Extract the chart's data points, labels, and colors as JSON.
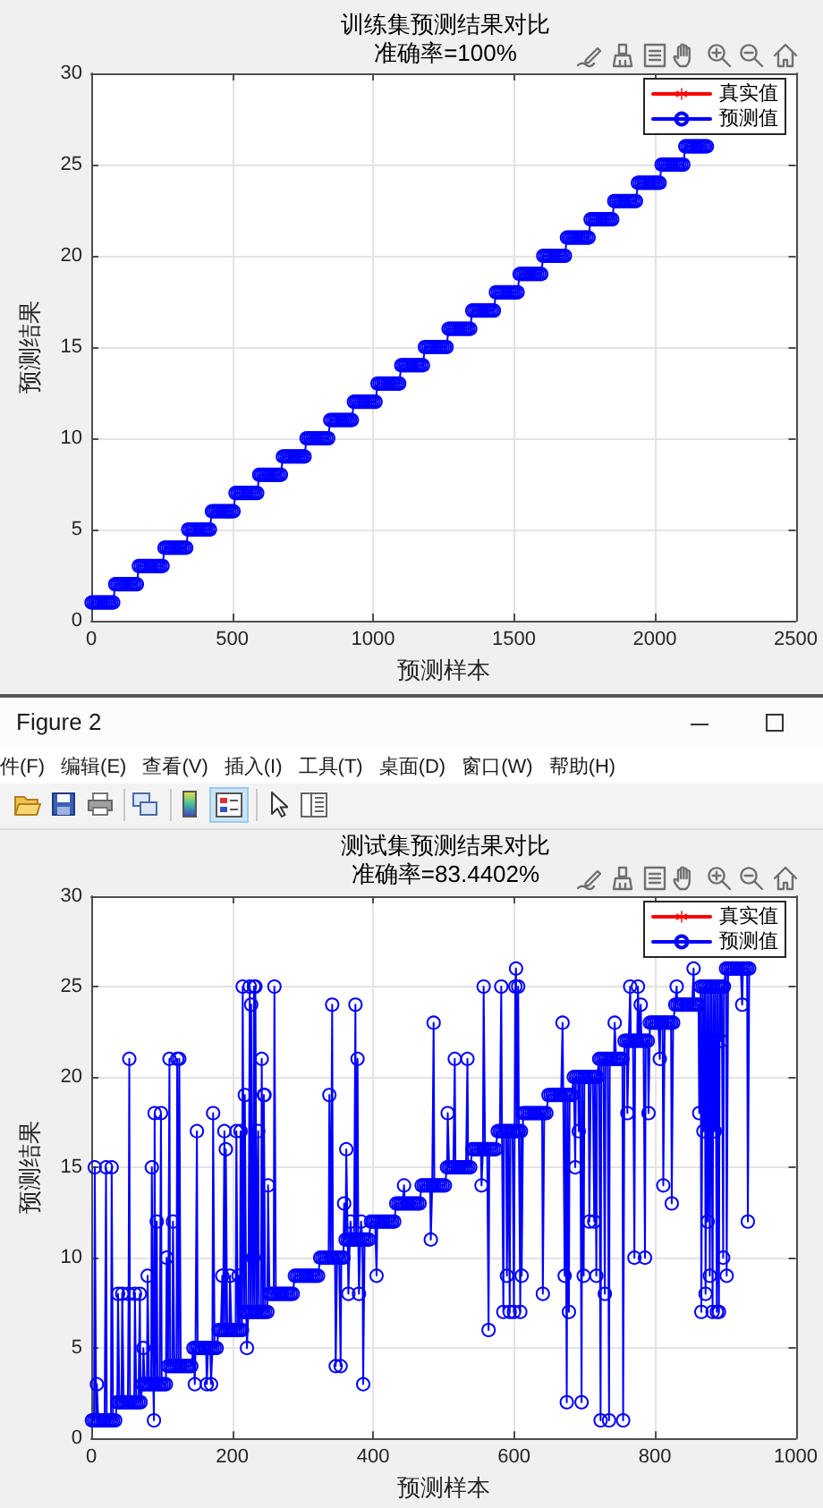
{
  "chart_data": [
    {
      "type": "line",
      "title": "训练集预测结果对比",
      "subtitle": "准确率=100%",
      "xlabel": "预测样本",
      "ylabel": "预测结果",
      "legend": "top right",
      "grid": true,
      "line_style": "solid",
      "xlim": [
        0,
        2500
      ],
      "xticks": [
        0,
        500,
        1000,
        1500,
        2000,
        2500
      ],
      "ylim": [
        0,
        30
      ],
      "yticks": [
        0,
        5,
        10,
        15,
        20,
        25,
        30
      ],
      "x": [
        1,
        8,
        15,
        22,
        29,
        36,
        43,
        50,
        57,
        64,
        71,
        78,
        85,
        92,
        99,
        106,
        113,
        120,
        127,
        134,
        141,
        148,
        155,
        162,
        169,
        176,
        183,
        190,
        197,
        204,
        211,
        218,
        225,
        232,
        239,
        246,
        253,
        260,
        267,
        274,
        281,
        288,
        295,
        302,
        309,
        316,
        323,
        330,
        337,
        344,
        351,
        358,
        365,
        372,
        379,
        386,
        393,
        400,
        407,
        414,
        421,
        428,
        435,
        442,
        449,
        456,
        463,
        470,
        477,
        484,
        491,
        498,
        505,
        512,
        519,
        526,
        533,
        540,
        547,
        554,
        561,
        568,
        575,
        582,
        589,
        596,
        603,
        610,
        617,
        624,
        631,
        638,
        645,
        652,
        659,
        666,
        673,
        680,
        687,
        694,
        701,
        708,
        715,
        722,
        729,
        736,
        743,
        750,
        757,
        764,
        771,
        778,
        785,
        792,
        799,
        806,
        813,
        820,
        827,
        834,
        841,
        848,
        855,
        862,
        869,
        876,
        883,
        890,
        897,
        904,
        911,
        918,
        925,
        932,
        939,
        946,
        953,
        960,
        967,
        974,
        981,
        988,
        995,
        1002,
        1009,
        1016,
        1023,
        1030,
        1037,
        1044,
        1051,
        1058,
        1065,
        1072,
        1079,
        1086,
        1093,
        1100,
        1107,
        1114,
        1121,
        1128,
        1135,
        1142,
        1149,
        1156,
        1163,
        1170,
        1177,
        1184,
        1191,
        1198,
        1205,
        1212,
        1219,
        1226,
        1233,
        1240,
        1247,
        1254,
        1261,
        1268,
        1275,
        1282,
        1289,
        1296,
        1303,
        1310,
        1317,
        1324,
        1331,
        1338,
        1345,
        1352,
        1359,
        1366,
        1373,
        1380,
        1387,
        1394,
        1401,
        1408,
        1415,
        1422,
        1429,
        1436,
        1443,
        1450,
        1457,
        1464,
        1471,
        1478,
        1485,
        1492,
        1499,
        1506,
        1513,
        1520,
        1527,
        1534,
        1541,
        1548,
        1555,
        1562,
        1569,
        1576,
        1583,
        1590,
        1597,
        1604,
        1611,
        1618,
        1625,
        1632,
        1639,
        1646,
        1653,
        1660,
        1667,
        1674,
        1681,
        1688,
        1695,
        1702,
        1709,
        1716,
        1723,
        1730,
        1737,
        1744,
        1751,
        1758,
        1765,
        1772,
        1779,
        1786,
        1793,
        1800,
        1807,
        1814,
        1821,
        1828,
        1835,
        1842,
        1849,
        1856,
        1863,
        1870,
        1877,
        1884,
        1891,
        1898,
        1905,
        1912,
        1919,
        1926,
        1933,
        1940,
        1947,
        1954,
        1961,
        1968,
        1975,
        1982,
        1989,
        1996,
        2003,
        2010,
        2017,
        2024,
        2031,
        2038,
        2045,
        2052,
        2059,
        2066,
        2073,
        2080,
        2087,
        2094,
        2101,
        2108,
        2115,
        2122,
        2129,
        2136,
        2143,
        2150,
        2157,
        2164,
        2171,
        2178,
        2185
      ],
      "series": [
        {
          "name": "真实值",
          "color": "#ff0000",
          "marker": "star",
          "values": [
            null,
            null,
            null,
            null,
            null,
            null,
            null,
            null,
            null,
            null,
            null,
            null,
            null,
            null,
            null,
            null,
            null,
            null,
            null,
            null,
            null,
            null,
            null,
            null,
            null,
            null,
            null,
            null,
            null,
            null,
            null,
            null,
            null,
            null,
            null,
            null,
            null,
            null,
            null,
            null,
            null,
            null,
            null,
            null,
            null,
            null,
            null,
            null,
            null,
            null,
            null,
            null,
            null,
            null,
            null,
            null,
            null,
            null,
            null,
            null,
            null,
            null,
            null,
            null,
            null,
            null,
            null,
            null,
            null,
            null,
            null,
            null,
            null,
            null,
            null,
            null,
            null,
            null,
            null,
            null,
            null,
            null,
            null,
            null,
            null,
            null,
            null,
            null,
            null,
            null,
            null,
            null,
            null,
            null,
            null,
            null,
            null,
            null,
            null,
            null,
            null,
            null,
            null,
            null,
            null,
            null,
            null,
            null,
            null,
            null,
            null,
            null,
            null,
            null,
            null,
            null,
            null,
            null,
            null,
            null,
            null,
            null,
            null,
            null,
            null,
            null,
            null,
            null,
            null,
            null,
            null,
            null,
            null,
            null,
            null,
            null,
            null,
            null,
            null,
            null,
            null,
            null,
            null,
            null,
            null,
            null,
            null,
            null,
            null,
            null,
            null,
            null,
            null,
            null,
            null,
            null,
            null,
            null,
            null,
            null,
            null,
            null,
            null,
            null,
            null,
            null,
            null,
            null,
            null,
            null,
            null,
            null,
            null,
            null,
            null,
            null,
            null,
            null,
            null,
            null,
            null,
            null,
            null,
            null,
            null,
            null,
            null,
            null,
            null,
            null,
            null,
            null,
            null,
            null,
            null,
            null,
            null,
            null,
            null,
            null,
            null,
            null,
            null,
            null,
            null,
            null,
            null,
            null,
            null,
            null,
            null,
            null,
            null,
            null,
            null,
            null,
            null,
            null,
            null,
            null,
            null,
            null,
            null,
            null,
            null,
            null,
            null,
            null,
            null,
            null,
            null,
            null,
            null,
            null,
            null,
            null,
            null,
            null,
            null,
            null,
            null,
            null,
            null,
            null,
            null,
            null,
            null,
            null,
            null,
            null,
            null,
            null,
            null,
            null,
            null,
            null,
            null,
            null,
            null,
            null,
            null,
            null,
            null,
            null,
            null,
            null,
            null,
            null,
            null,
            null,
            null,
            null,
            null,
            null,
            null,
            null,
            null,
            null,
            null,
            null,
            null,
            null,
            null,
            null,
            null,
            null,
            null,
            null,
            null,
            null,
            null,
            null,
            null,
            null,
            null,
            null,
            null,
            null,
            null,
            null,
            null,
            null,
            null,
            null,
            null,
            null,
            null,
            null,
            null,
            null,
            null,
            null,
            null
          ]
        },
        {
          "name": "预测值",
          "color": "#0000ff",
          "marker": "circle",
          "values": [
            1,
            1,
            1,
            1,
            1,
            1,
            1,
            1,
            1,
            1,
            1,
            1,
            2,
            2,
            2,
            2,
            2,
            2,
            2,
            2,
            2,
            2,
            2,
            2,
            3,
            3,
            3,
            3,
            3,
            3,
            3,
            3,
            3,
            3,
            3,
            3,
            3,
            4,
            4,
            4,
            4,
            4,
            4,
            4,
            4,
            4,
            4,
            4,
            4,
            5,
            5,
            5,
            5,
            5,
            5,
            5,
            5,
            5,
            5,
            5,
            5,
            6,
            6,
            6,
            6,
            6,
            6,
            6,
            6,
            6,
            6,
            6,
            6,
            7,
            7,
            7,
            7,
            7,
            7,
            7,
            7,
            7,
            7,
            7,
            7,
            8,
            8,
            8,
            8,
            8,
            8,
            8,
            8,
            8,
            8,
            8,
            8,
            9,
            9,
            9,
            9,
            9,
            9,
            9,
            9,
            9,
            9,
            9,
            9,
            10,
            10,
            10,
            10,
            10,
            10,
            10,
            10,
            10,
            10,
            10,
            10,
            11,
            11,
            11,
            11,
            11,
            11,
            11,
            11,
            11,
            11,
            11,
            11,
            12,
            12,
            12,
            12,
            12,
            12,
            12,
            12,
            12,
            12,
            12,
            12,
            13,
            13,
            13,
            13,
            13,
            13,
            13,
            13,
            13,
            13,
            13,
            13,
            14,
            14,
            14,
            14,
            14,
            14,
            14,
            14,
            14,
            14,
            14,
            14,
            15,
            15,
            15,
            15,
            15,
            15,
            15,
            15,
            15,
            15,
            15,
            15,
            16,
            16,
            16,
            16,
            16,
            16,
            16,
            16,
            16,
            16,
            16,
            16,
            17,
            17,
            17,
            17,
            17,
            17,
            17,
            17,
            17,
            17,
            17,
            17,
            18,
            18,
            18,
            18,
            18,
            18,
            18,
            18,
            18,
            18,
            18,
            18,
            19,
            19,
            19,
            19,
            19,
            19,
            19,
            19,
            19,
            19,
            19,
            19,
            20,
            20,
            20,
            20,
            20,
            20,
            20,
            20,
            20,
            20,
            20,
            20,
            21,
            21,
            21,
            21,
            21,
            21,
            21,
            21,
            21,
            21,
            21,
            21,
            22,
            22,
            22,
            22,
            22,
            22,
            22,
            22,
            22,
            22,
            22,
            22,
            23,
            23,
            23,
            23,
            23,
            23,
            23,
            23,
            23,
            23,
            23,
            23,
            24,
            24,
            24,
            24,
            24,
            24,
            24,
            24,
            24,
            24,
            24,
            24,
            25,
            25,
            25,
            25,
            25,
            25,
            25,
            25,
            25,
            25,
            25,
            25,
            26,
            26,
            26,
            26,
            26,
            26,
            26,
            26,
            26,
            26,
            26,
            26
          ]
        }
      ]
    },
    {
      "type": "other",
      "annotations": [
        "Figure 2",
        "件(F)",
        "编辑(E)",
        "查看(V)",
        "插入(I)",
        "工具(T)",
        "桌面(D)",
        "窗口(W)",
        "帮助(H)"
      ]
    },
    {
      "type": "line",
      "title": "测试集预测结果对比",
      "subtitle": "准确率=83.4402%",
      "xlabel": "预测样本",
      "ylabel": "预测结果",
      "legend": "top right",
      "grid": true,
      "line_style": "solid",
      "xlim": [
        0,
        1000
      ],
      "xticks": [
        0,
        200,
        400,
        600,
        800,
        1000
      ],
      "ylim": [
        0,
        30
      ],
      "yticks": [
        0,
        5,
        10,
        15,
        20,
        25,
        30
      ],
      "x": [
        1,
        4,
        5,
        7,
        8,
        10,
        13,
        16,
        19,
        21,
        22,
        25,
        28,
        29,
        31,
        34,
        37,
        38,
        40,
        43,
        44,
        46,
        49,
        52,
        53,
        54,
        55,
        58,
        61,
        62,
        64,
        67,
        69,
        70,
        73,
        74,
        76,
        79,
        80,
        82,
        85,
        86,
        88,
        89,
        90,
        91,
        93,
        94,
        97,
        99,
        100,
        103,
        106,
        107,
        109,
        111,
        112,
        115,
        116,
        118,
        121,
        122,
        124,
        125,
        127,
        130,
        133,
        136,
        139,
        142,
        145,
        147,
        148,
        150,
        151,
        154,
        157,
        160,
        163,
        164,
        166,
        169,
        170,
        172,
        173,
        175,
        178,
        181,
        184,
        186,
        187,
        189,
        190,
        191,
        193,
        196,
        197,
        199,
        202,
        205,
        206,
        208,
        209,
        211,
        212,
        214,
        215,
        217,
        218,
        220,
        221,
        223,
        225,
        226,
        227,
        229,
        230,
        231,
        232,
        233,
        235,
        237,
        238,
        241,
        242,
        244,
        245,
        246,
        247,
        250,
        251,
        253,
        256,
        259,
        260,
        262,
        265,
        268,
        271,
        274,
        277,
        280,
        283,
        286,
        289,
        292,
        295,
        298,
        301,
        304,
        307,
        310,
        313,
        316,
        319,
        322,
        325,
        328,
        331,
        334,
        337,
        338,
        340,
        342,
        343,
        346,
        347,
        349,
        352,
        354,
        355,
        358,
        359,
        361,
        362,
        364,
        365,
        367,
        368,
        370,
        373,
        375,
        376,
        378,
        379,
        380,
        382,
        383,
        385,
        386,
        388,
        391,
        394,
        397,
        400,
        403,
        405,
        406,
        409,
        412,
        415,
        418,
        421,
        424,
        427,
        430,
        433,
        436,
        439,
        442,
        444,
        445,
        448,
        451,
        454,
        457,
        460,
        463,
        466,
        469,
        472,
        475,
        478,
        481,
        482,
        484,
        486,
        487,
        490,
        493,
        496,
        499,
        502,
        505,
        506,
        508,
        511,
        514,
        516,
        517,
        520,
        523,
        526,
        529,
        532,
        534,
        535,
        538,
        541,
        544,
        547,
        550,
        553,
        554,
        556,
        557,
        559,
        562,
        564,
        565,
        568,
        571,
        574,
        577,
        580,
        582,
        583,
        585,
        586,
        589,
        590,
        592,
        594,
        595,
        598,
        600,
        601,
        602,
        603,
        604,
        606,
        607,
        609,
        610,
        611,
        613,
        616,
        619,
        622,
        625,
        628,
        631,
        634,
        637,
        640,
        641,
        643,
        646,
        649,
        652,
        655,
        658,
        661,
        664,
        667,
        669,
        670,
        672,
        673,
        675,
        676,
        678,
        679,
        682,
        685,
        687,
        688,
        691,
        692,
        694,
        696,
        697,
        699,
        700,
        703,
        706,
        707,
        709,
        712,
        714,
        715,
        717,
        718,
        721,
        723,
        724,
        727,
        729,
        730,
        733,
        735,
        736,
        739,
        742,
        743,
        745,
        748,
        751,
        754,
        755,
        757,
        760,
        761,
        763,
        765,
        766,
        769,
        771,
        772,
        775,
        776,
        778,
        780,
        781,
        784,
        786,
        787,
        790,
        791,
        793,
        796,
        799,
        802,
        805,
        807,
        808,
        811,
        812,
        814,
        817,
        820,
        823,
        824,
        826,
        829,
        831,
        832,
        835,
        838,
        841,
        844,
        847,
        850,
        853,
        855,
        856,
        859,
        862,
        863,
        865,
        866,
        868,
        869,
        871,
        872,
        874,
        875,
        877,
        878,
        880,
        882,
        883,
        885,
        886,
        888,
        889,
        891,
        892,
        894,
        895,
        897,
        898,
        901,
        902,
        904,
        907,
        910,
        913,
        916,
        919,
        922,
        924,
        925,
        928,
        931,
        932,
        934
      ],
      "series": [
        {
          "name": "真实值",
          "color": "#ff0000",
          "marker": "star",
          "values": [
            null,
            null,
            null,
            null,
            null,
            null,
            null,
            null,
            null,
            null,
            null,
            null,
            null,
            null,
            null,
            null,
            null,
            null,
            null,
            null,
            null,
            null,
            null,
            null,
            null,
            null,
            null,
            null,
            null,
            null,
            null,
            null,
            null,
            null,
            null,
            null,
            null,
            null,
            null,
            null,
            null,
            null,
            null,
            null,
            null,
            null,
            null,
            null,
            null,
            null,
            null,
            null,
            null,
            null,
            null,
            null,
            null,
            null,
            null,
            null,
            null,
            null,
            null,
            null,
            null,
            null,
            null,
            null,
            null,
            null,
            null,
            null,
            null,
            null,
            null,
            null,
            null,
            null,
            null,
            null,
            null,
            null,
            null,
            null,
            null,
            null,
            null,
            null,
            null,
            null,
            null,
            null,
            null,
            null,
            null,
            null,
            null,
            null,
            null,
            null,
            null,
            null,
            null,
            null,
            null,
            null,
            null,
            null,
            null,
            null,
            null,
            null,
            null,
            null,
            null,
            null,
            null,
            null,
            null,
            null,
            null,
            null,
            null,
            null,
            null,
            null,
            null,
            null,
            null,
            null,
            null,
            null,
            null,
            null,
            null,
            null,
            null,
            null,
            null,
            null,
            null,
            null,
            null,
            null,
            null,
            null,
            null,
            null,
            null,
            null,
            null,
            null,
            null,
            null,
            null,
            null,
            null,
            null,
            null,
            null,
            null,
            null,
            null,
            null,
            null,
            null,
            null,
            null,
            null,
            null,
            null,
            null,
            null,
            null,
            null,
            null,
            null,
            null,
            null,
            null,
            null,
            null,
            null,
            null,
            null,
            null,
            null,
            null,
            null,
            null,
            null,
            null,
            null,
            null,
            null,
            null,
            null,
            null,
            null,
            null,
            null,
            null,
            null,
            null,
            null,
            null,
            null,
            null,
            null,
            null,
            null,
            null,
            null,
            null,
            null,
            null,
            null,
            null,
            null,
            null,
            null,
            null,
            null,
            null,
            null,
            null,
            null,
            null,
            null,
            null,
            null,
            null,
            null,
            null,
            null,
            null,
            null,
            null,
            null,
            null,
            null,
            null,
            null,
            null,
            null,
            null,
            null,
            null,
            null,
            null,
            null,
            null,
            null,
            null,
            null,
            null,
            null,
            null,
            null,
            null,
            null,
            null,
            null,
            null,
            null,
            null,
            null,
            null,
            null,
            null,
            null,
            null,
            null,
            null,
            null,
            null,
            null,
            null,
            null,
            null,
            null,
            null,
            null,
            null,
            null,
            null,
            null,
            null,
            null,
            null,
            null,
            null,
            null,
            null,
            null,
            null,
            null,
            null,
            null,
            null,
            null,
            null,
            null,
            null,
            null,
            null,
            null,
            null,
            null,
            null,
            null,
            null,
            null,
            null,
            null,
            null,
            null,
            null,
            null,
            null,
            null,
            null,
            null,
            null,
            null,
            null,
            null,
            null,
            null,
            null,
            null,
            null,
            null,
            null,
            null,
            null,
            null,
            null,
            null,
            null,
            null,
            null,
            null,
            null,
            null,
            null,
            null,
            null,
            null,
            null,
            null,
            null,
            null,
            null,
            null,
            null,
            null,
            null,
            null,
            null,
            null,
            null,
            null,
            null,
            null,
            null,
            null,
            null,
            null,
            null,
            null,
            null,
            null,
            null,
            null,
            null,
            null,
            null,
            null,
            null,
            null,
            null,
            null,
            null,
            null,
            null,
            null,
            null,
            null,
            null,
            null,
            null,
            null,
            null,
            null,
            null,
            null,
            null,
            null,
            null,
            null,
            null,
            null,
            null,
            null,
            null,
            null,
            null,
            null,
            null,
            null,
            null,
            null,
            null,
            null,
            null,
            null,
            null,
            null,
            null,
            null,
            null,
            null,
            null,
            null,
            null,
            null,
            null,
            null,
            null,
            null,
            null,
            null,
            null,
            null,
            null,
            null
          ]
        },
        {
          "name": "预测值",
          "color": "#0000ff",
          "marker": "circle",
          "values": [
            1,
            1,
            15,
            1,
            3,
            1,
            1,
            1,
            1,
            15,
            1,
            1,
            1,
            15,
            1,
            1,
            2,
            8,
            2,
            2,
            8,
            2,
            2,
            2,
            8,
            21,
            2,
            2,
            2,
            8,
            2,
            2,
            8,
            2,
            3,
            5,
            3,
            3,
            9,
            3,
            3,
            15,
            3,
            1,
            18,
            3,
            12,
            3,
            3,
            18,
            3,
            3,
            3,
            10,
            4,
            21,
            4,
            4,
            12,
            4,
            4,
            21,
            4,
            21,
            4,
            4,
            4,
            4,
            4,
            4,
            5,
            3,
            5,
            17,
            5,
            5,
            5,
            5,
            5,
            3,
            5,
            5,
            3,
            5,
            18,
            5,
            5,
            6,
            6,
            9,
            6,
            17,
            6,
            16,
            6,
            6,
            9,
            6,
            6,
            6,
            17,
            6,
            9,
            6,
            17,
            6,
            25,
            7,
            19,
            7,
            5,
            7,
            25,
            7,
            24,
            7,
            10,
            25,
            7,
            25,
            7,
            17,
            7,
            7,
            21,
            7,
            19,
            19,
            7,
            7,
            14,
            8,
            8,
            8,
            25,
            8,
            8,
            8,
            8,
            8,
            8,
            8,
            8,
            8,
            9,
            9,
            9,
            9,
            9,
            9,
            9,
            9,
            9,
            9,
            9,
            9,
            10,
            10,
            10,
            10,
            10,
            19,
            10,
            24,
            10,
            10,
            4,
            10,
            10,
            4,
            10,
            10,
            13,
            11,
            16,
            11,
            8,
            11,
            12,
            11,
            11,
            24,
            11,
            21,
            11,
            8,
            11,
            12,
            11,
            3,
            11,
            11,
            11,
            12,
            12,
            12,
            9,
            12,
            12,
            12,
            12,
            12,
            12,
            12,
            12,
            12,
            13,
            13,
            13,
            13,
            14,
            13,
            13,
            13,
            13,
            13,
            13,
            13,
            13,
            14,
            14,
            14,
            14,
            14,
            11,
            14,
            23,
            14,
            14,
            14,
            14,
            14,
            14,
            15,
            18,
            15,
            15,
            15,
            21,
            15,
            15,
            15,
            15,
            15,
            15,
            21,
            15,
            15,
            16,
            16,
            16,
            16,
            16,
            14,
            16,
            25,
            16,
            16,
            6,
            16,
            16,
            16,
            16,
            17,
            17,
            25,
            17,
            7,
            17,
            17,
            9,
            17,
            7,
            17,
            17,
            7,
            17,
            25,
            26,
            17,
            25,
            17,
            7,
            17,
            9,
            18,
            18,
            18,
            18,
            18,
            18,
            18,
            18,
            18,
            18,
            8,
            18,
            18,
            19,
            19,
            19,
            19,
            19,
            19,
            19,
            23,
            19,
            9,
            19,
            2,
            19,
            7,
            19,
            19,
            20,
            15,
            20,
            20,
            17,
            20,
            2,
            20,
            9,
            20,
            20,
            20,
            12,
            20,
            20,
            12,
            20,
            9,
            20,
            21,
            1,
            21,
            21,
            8,
            21,
            21,
            1,
            21,
            21,
            21,
            23,
            21,
            21,
            21,
            21,
            1,
            22,
            22,
            18,
            22,
            25,
            22,
            22,
            10,
            22,
            22,
            25,
            22,
            24,
            22,
            22,
            10,
            22,
            22,
            18,
            23,
            23,
            23,
            23,
            23,
            21,
            23,
            23,
            14,
            23,
            23,
            23,
            23,
            13,
            23,
            24,
            25,
            24,
            24,
            24,
            24,
            24,
            24,
            24,
            24,
            26,
            24,
            24,
            24,
            18,
            25,
            7,
            25,
            17,
            25,
            8,
            25,
            12,
            25,
            9,
            25,
            7,
            25,
            17,
            25,
            7,
            25,
            7,
            25,
            22,
            25,
            10,
            25,
            26,
            9,
            26,
            26,
            26,
            26,
            26,
            26,
            26,
            24,
            26,
            26,
            26,
            12,
            26
          ]
        }
      ]
    }
  ]
}
